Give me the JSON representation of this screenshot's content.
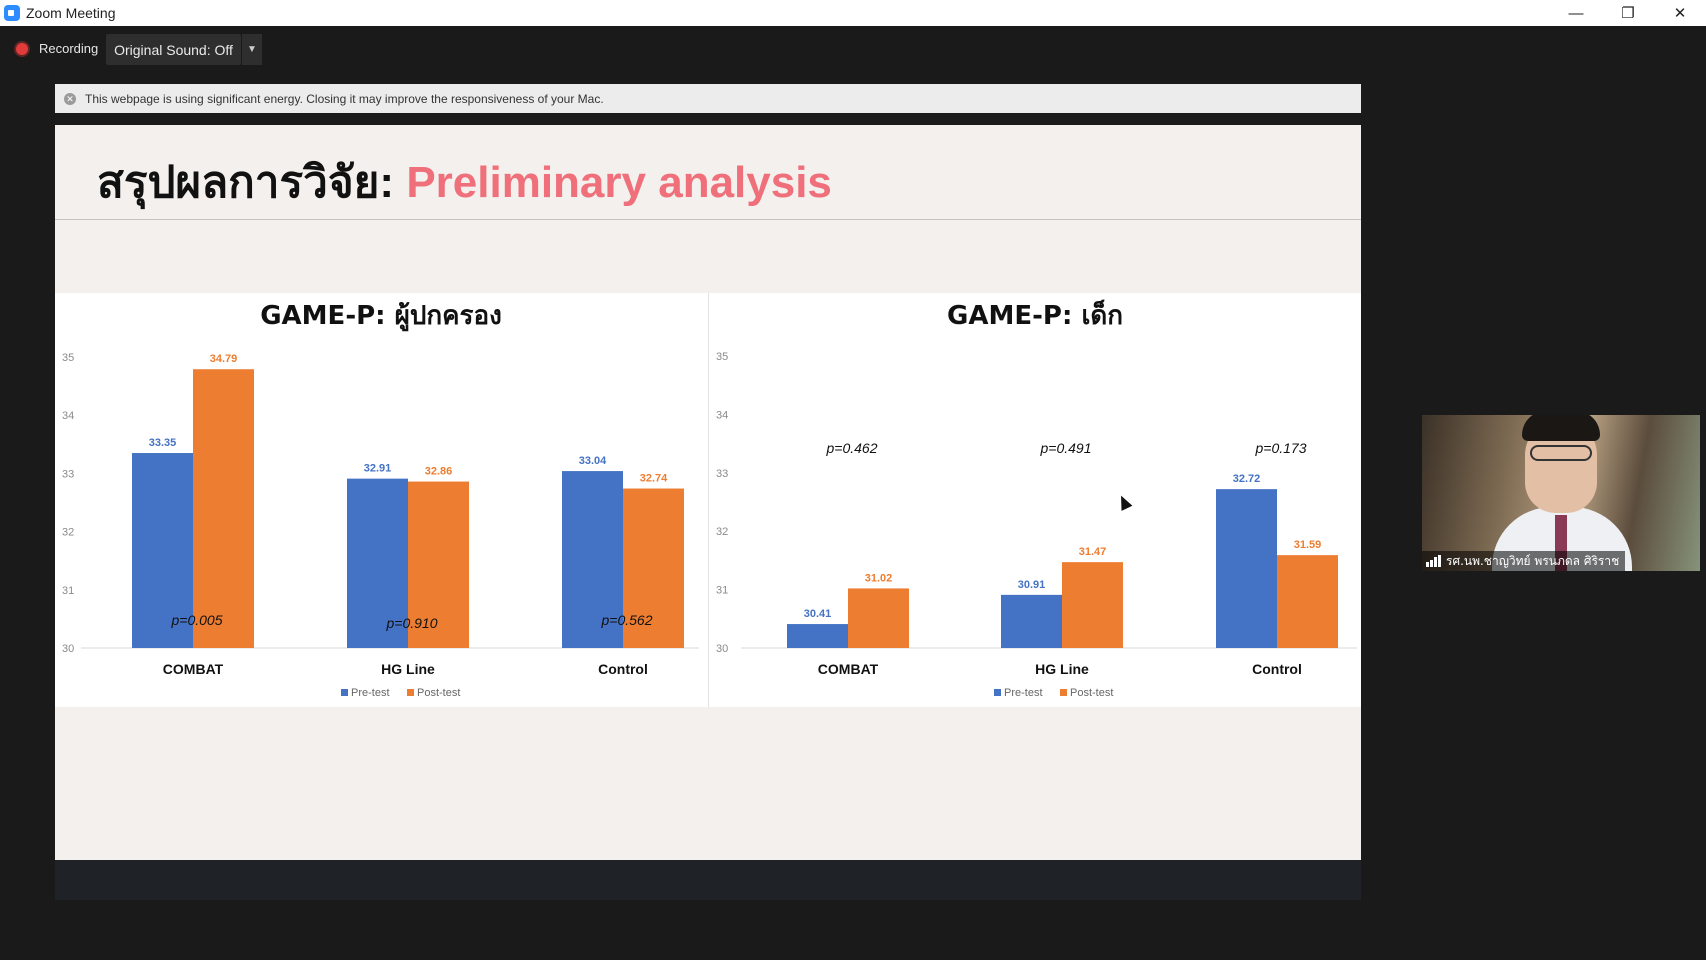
{
  "window": {
    "title": "Zoom Meeting"
  },
  "toolbar": {
    "recording_label": "Recording",
    "original_sound_label": "Original Sound: Off"
  },
  "notice": {
    "text": "This webpage is using significant energy. Closing it may improve the responsiveness of your Mac."
  },
  "slide": {
    "title_thai": "สรุปผลการวิจัย:",
    "title_english": "Preliminary analysis"
  },
  "participant": {
    "name": "รศ.นพ.ชาญวิทย์ พรนภดล ศิริราช"
  },
  "colors": {
    "pre": "#4472c4",
    "post": "#ed7d31",
    "accent": "#ef6f7a"
  },
  "chart_data": [
    {
      "type": "bar",
      "title": "GAME-P: ผู้ปกครอง",
      "categories": [
        "COMBAT",
        "HG Line",
        "Control"
      ],
      "series": [
        {
          "name": "Pre-test",
          "values": [
            33.35,
            32.91,
            33.04
          ]
        },
        {
          "name": "Post-test",
          "values": [
            34.79,
            32.86,
            32.74
          ]
        }
      ],
      "annotations": [
        "p=0.005",
        "p=0.910",
        "p=0.562"
      ],
      "ylim": [
        30,
        35
      ],
      "yticks": [
        30,
        31,
        32,
        33,
        34,
        35
      ],
      "legend": "bottom"
    },
    {
      "type": "bar",
      "title": "GAME-P: เด็ก",
      "categories": [
        "COMBAT",
        "HG Line",
        "Control"
      ],
      "series": [
        {
          "name": "Pre-test",
          "values": [
            30.41,
            30.91,
            32.72
          ]
        },
        {
          "name": "Post-test",
          "values": [
            31.02,
            31.47,
            31.59
          ]
        }
      ],
      "annotations": [
        "p=0.462",
        "p=0.491",
        "p=0.173"
      ],
      "ylim": [
        30,
        35
      ],
      "yticks": [
        30,
        31,
        32,
        33,
        34,
        35
      ],
      "legend": "bottom"
    }
  ]
}
